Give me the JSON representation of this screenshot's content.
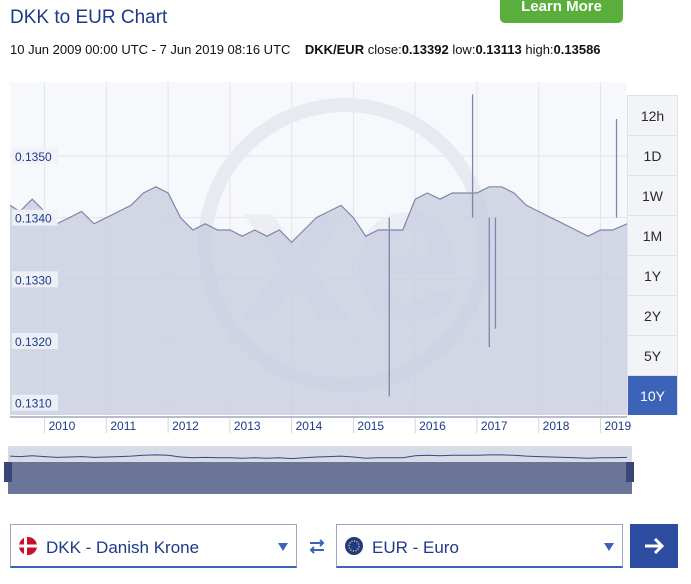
{
  "header": {
    "title": "DKK to EUR Chart",
    "learn_more": "Learn More"
  },
  "info": {
    "range": "10 Jun 2009 00:00 UTC - 7 Jun 2019 08:16 UTC",
    "pair": "DKK/EUR",
    "close_label": "close:",
    "close": "0.13392",
    "low_label": "low:",
    "low": "0.13113",
    "high_label": "high:",
    "high": "0.13586"
  },
  "range_buttons": [
    "12h",
    "1D",
    "1W",
    "1M",
    "1Y",
    "2Y",
    "5Y",
    "10Y"
  ],
  "active_range": "10Y",
  "from_currency": {
    "label": "DKK - Danish Krone"
  },
  "to_currency": {
    "label": "EUR - Euro"
  },
  "colors": {
    "accent": "#3d63b8",
    "button_green": "#5aae3c",
    "line": "#7d86ab",
    "fill": "#c9cde0"
  },
  "chart_data": {
    "type": "area",
    "title": "DKK to EUR Chart",
    "xlabel": "",
    "ylabel": "",
    "xlim": [
      2009.44,
      2019.43
    ],
    "ylim": [
      13.08,
      13.62
    ],
    "y_ticks": [
      "0.1350",
      "0.1340",
      "0.1330",
      "0.1320",
      "0.1310"
    ],
    "y_tick_values": [
      13.5,
      13.4,
      13.3,
      13.2,
      13.1
    ],
    "x_ticks": [
      "2010",
      "2011",
      "2012",
      "2013",
      "2014",
      "2015",
      "2016",
      "2017",
      "2018",
      "2019"
    ],
    "x_tick_values": [
      2010,
      2011,
      2012,
      2013,
      2014,
      2015,
      2016,
      2017,
      2018,
      2019
    ],
    "grid": true,
    "series": [
      {
        "x": [
          2009.44,
          2009.6,
          2009.8,
          2010.0,
          2010.2,
          2010.4,
          2010.6,
          2010.8,
          2011.0,
          2011.2,
          2011.4,
          2011.6,
          2011.8,
          2012.0,
          2012.2,
          2012.4,
          2012.6,
          2012.8,
          2013.0,
          2013.2,
          2013.4,
          2013.6,
          2013.8,
          2014.0,
          2014.2,
          2014.4,
          2014.6,
          2014.8,
          2015.0,
          2015.2,
          2015.4,
          2015.6,
          2015.8,
          2016.0,
          2016.2,
          2016.4,
          2016.6,
          2016.8,
          2017.0,
          2017.2,
          2017.4,
          2017.6,
          2017.8,
          2018.0,
          2018.2,
          2018.4,
          2018.6,
          2018.8,
          2019.0,
          2019.2,
          2019.43
        ],
        "y": [
          13.42,
          13.41,
          13.43,
          13.41,
          13.39,
          13.4,
          13.41,
          13.39,
          13.4,
          13.41,
          13.42,
          13.44,
          13.45,
          13.44,
          13.4,
          13.38,
          13.39,
          13.38,
          13.38,
          13.37,
          13.38,
          13.37,
          13.38,
          13.36,
          13.38,
          13.4,
          13.41,
          13.42,
          13.4,
          13.37,
          13.38,
          13.38,
          13.38,
          13.43,
          13.44,
          13.43,
          13.44,
          13.44,
          13.44,
          13.45,
          13.45,
          13.44,
          13.42,
          13.41,
          13.4,
          13.39,
          13.38,
          13.37,
          13.38,
          13.38,
          13.39
        ]
      }
    ],
    "spikes": [
      {
        "x": 2015.58,
        "y": 13.11
      },
      {
        "x": 2016.93,
        "y": 13.6
      },
      {
        "x": 2017.2,
        "y": 13.19
      },
      {
        "x": 2017.3,
        "y": 13.22
      },
      {
        "x": 2019.26,
        "y": 13.56
      }
    ]
  }
}
